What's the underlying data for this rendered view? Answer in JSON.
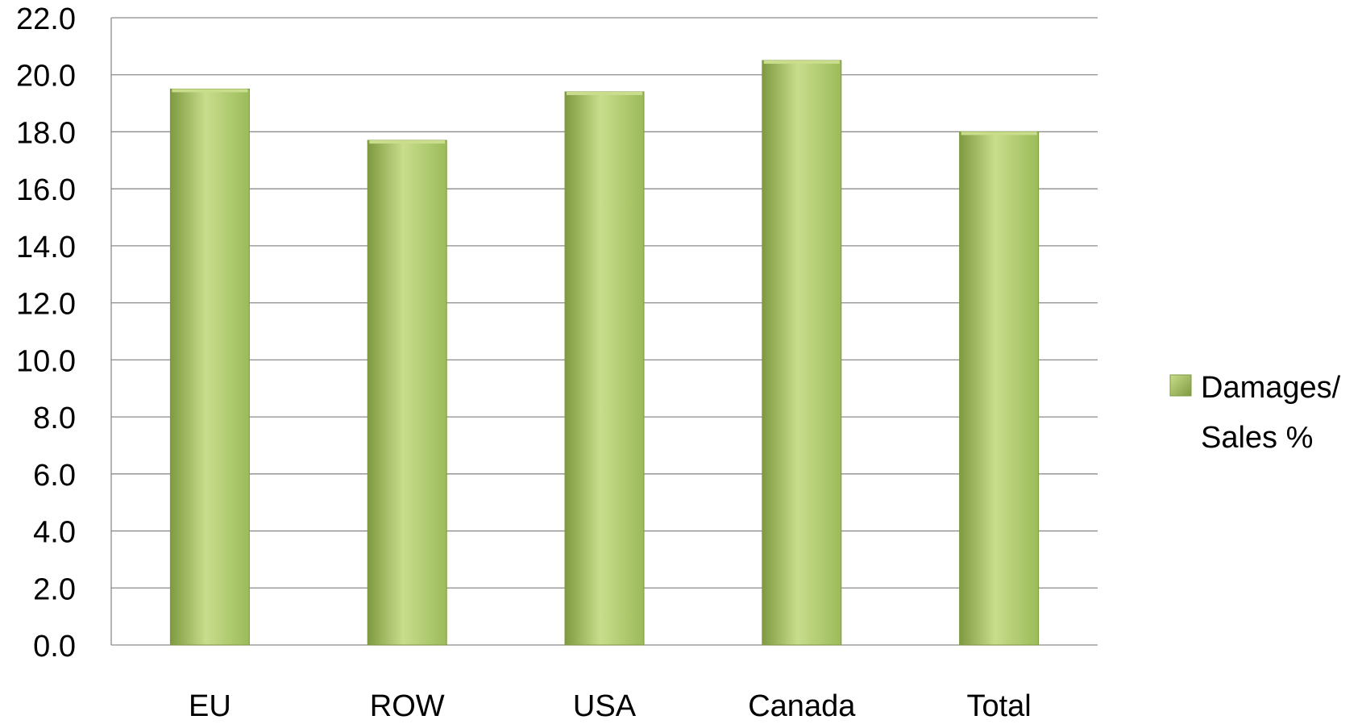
{
  "chart_data": {
    "type": "bar",
    "title": "",
    "xlabel": "",
    "ylabel": "",
    "categories": [
      "EU",
      "ROW",
      "USA",
      "Canada",
      "Total"
    ],
    "series": [
      {
        "name": "Damages/ Sales %",
        "values": [
          19.5,
          17.7,
          19.4,
          20.5,
          18.0
        ]
      }
    ],
    "legend": {
      "placement": "right",
      "label_lines": [
        "Damages/",
        "Sales %"
      ]
    },
    "ylim": [
      0,
      22
    ],
    "ytick_step": 2,
    "yticks": [
      "0.0",
      "2.0",
      "4.0",
      "6.0",
      "8.0",
      "10.0",
      "12.0",
      "14.0",
      "16.0",
      "18.0",
      "20.0",
      "22.0"
    ],
    "grid": true,
    "colors": {
      "bar": "#9bbb59",
      "bar_light": "#c9dd8c",
      "bar_dark": "#7e9a3f",
      "grid": "#8c8c8c"
    }
  }
}
